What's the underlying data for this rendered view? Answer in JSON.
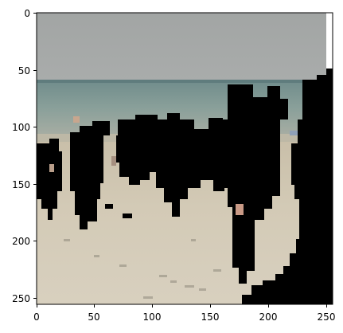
{
  "image": {
    "description": "",
    "x_ticks": [
      "0",
      "50",
      "100",
      "150",
      "200",
      "250"
    ],
    "y_ticks": [
      "0",
      "50",
      "100",
      "150",
      "200",
      "250"
    ]
  },
  "colors": {
    "sky": "#a4a7a6",
    "sea": "#7e9690",
    "sea_dark": "#5e7a78",
    "sand": "#cfc6b2",
    "sand_light": "#ddd6c6",
    "mask": "#000000",
    "axis": "#000000"
  }
}
